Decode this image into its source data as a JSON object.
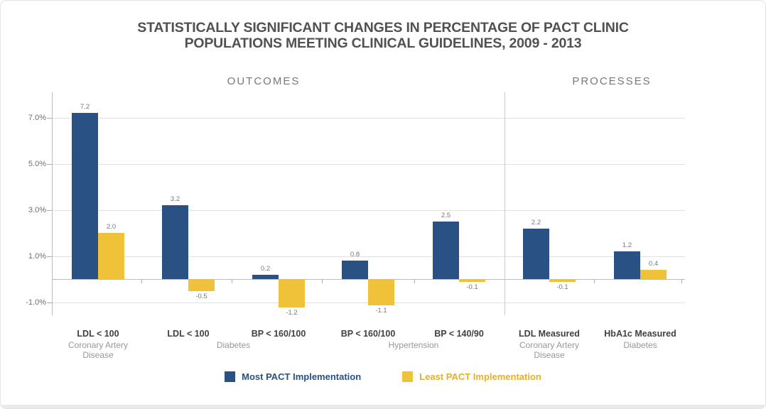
{
  "title": {
    "line1": "STATISTICALLY SIGNIFICANT CHANGES IN PERCENTAGE OF PACT CLINIC",
    "line2": "POPULATIONS MEETING CLINICAL GUIDELINES, 2009 - 2013"
  },
  "sections": [
    {
      "label": "OUTCOMES"
    },
    {
      "label": "PROCESSES"
    }
  ],
  "chart_data": {
    "type": "bar",
    "title": "Statistically significant changes in percentage of PACT clinic populations meeting clinical guidelines, 2009 - 2013",
    "categories": [
      "LDL < 100",
      "LDL < 100",
      "BP < 160/100",
      "BP < 160/100",
      "BP < 140/90",
      "LDL Measured",
      "HbA1c Measured"
    ],
    "category_sections": [
      "OUTCOMES",
      "OUTCOMES",
      "OUTCOMES",
      "OUTCOMES",
      "OUTCOMES",
      "PROCESSES",
      "PROCESSES"
    ],
    "subcategories": [
      {
        "label": "Coronary Artery Disease",
        "groups": [
          0
        ]
      },
      {
        "label": "Diabetes",
        "groups": [
          1,
          2
        ]
      },
      {
        "label": "Hypertension",
        "groups": [
          3,
          4
        ]
      },
      {
        "label": "Coronary Artery Disease",
        "groups": [
          5
        ]
      },
      {
        "label": "Diabetes",
        "groups": [
          6
        ]
      }
    ],
    "series": [
      {
        "name": "Most PACT Implementation",
        "color": "#2a5183",
        "values": [
          7.2,
          3.2,
          0.2,
          0.8,
          2.5,
          2.2,
          1.2
        ]
      },
      {
        "name": "Least PACT Implementation",
        "color": "#efc239",
        "values": [
          2.0,
          -0.5,
          -1.2,
          -1.1,
          -0.1,
          -0.1,
          0.4
        ]
      }
    ],
    "ylabel": "",
    "xlabel": "",
    "y_ticks": [
      7.0,
      5.0,
      3.0,
      1.0,
      -1.0
    ],
    "y_tick_labels": [
      "7.0%",
      "5.0%",
      "3.0%",
      "1.0%",
      "-1.0%"
    ],
    "ylim": [
      -1.5,
      8.1
    ],
    "grid": true,
    "legend_position": "bottom"
  },
  "legend": [
    {
      "label": "Most PACT Implementation",
      "color": "#2a5183",
      "text_color": "#2a5183"
    },
    {
      "label": "Least PACT Implementation",
      "color": "#efc239",
      "text_color": "#e3b02a"
    }
  ],
  "colors": {
    "most_pact_blue": "#2a5183",
    "least_pact_gold": "#efc239",
    "title_gray": "#505153",
    "gridline_gray": "#e0e1e2"
  }
}
